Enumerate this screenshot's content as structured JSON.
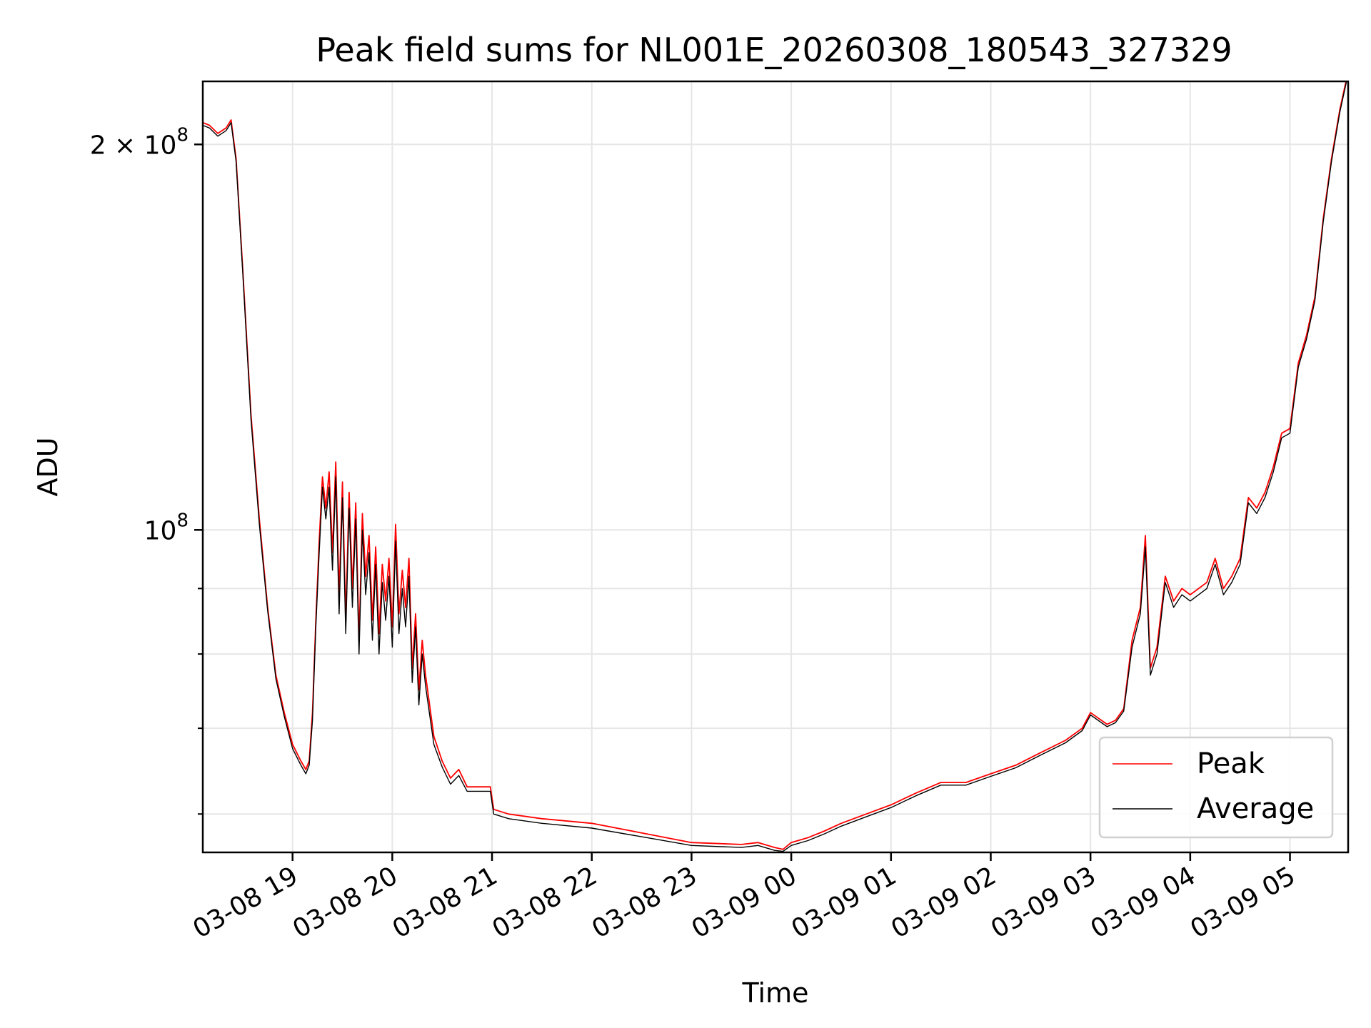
{
  "chart_data": {
    "type": "line",
    "title": "Peak field sums for NL001E_20260308_180543_327329",
    "xlabel": "Time",
    "ylabel": "ADU",
    "y_scale": "log",
    "ylim": [
      56000000,
      224000000
    ],
    "xlim": [
      "03-08 18:06",
      "03-09 05:35"
    ],
    "x_ticks": [
      "03-08 19",
      "03-08 20",
      "03-08 21",
      "03-08 22",
      "03-08 23",
      "03-09 00",
      "03-09 01",
      "03-09 02",
      "03-09 03",
      "03-09 04",
      "03-09 05"
    ],
    "y_ticks": [
      {
        "value": 200000000,
        "label": "2 × 10⁸",
        "base": "2 × 10",
        "exp": "8"
      },
      {
        "value": 100000000,
        "label": "10⁸",
        "base": "10",
        "exp": "8"
      }
    ],
    "y_minor_ticks": [
      60000000,
      70000000,
      80000000,
      90000000
    ],
    "grid": true,
    "legend": {
      "position": "lower-right"
    },
    "series": [
      {
        "name": "Peak",
        "color": "#ff0000",
        "x": [
          "03-08 18:06",
          "03-08 18:10",
          "03-08 18:15",
          "03-08 18:20",
          "03-08 18:23",
          "03-08 18:26",
          "03-08 18:30",
          "03-08 18:35",
          "03-08 18:40",
          "03-08 18:45",
          "03-08 18:50",
          "03-08 18:55",
          "03-08 19:00",
          "03-08 19:05",
          "03-08 19:08",
          "03-08 19:10",
          "03-08 19:12",
          "03-08 19:14",
          "03-08 19:16",
          "03-08 19:18",
          "03-08 19:20",
          "03-08 19:22",
          "03-08 19:24",
          "03-08 19:26",
          "03-08 19:28",
          "03-08 19:30",
          "03-08 19:32",
          "03-08 19:34",
          "03-08 19:36",
          "03-08 19:38",
          "03-08 19:40",
          "03-08 19:42",
          "03-08 19:44",
          "03-08 19:46",
          "03-08 19:48",
          "03-08 19:50",
          "03-08 19:52",
          "03-08 19:54",
          "03-08 19:56",
          "03-08 19:58",
          "03-08 20:00",
          "03-08 20:02",
          "03-08 20:04",
          "03-08 20:06",
          "03-08 20:08",
          "03-08 20:10",
          "03-08 20:12",
          "03-08 20:14",
          "03-08 20:16",
          "03-08 20:18",
          "03-08 20:20",
          "03-08 20:25",
          "03-08 20:30",
          "03-08 20:35",
          "03-08 20:40",
          "03-08 20:45",
          "03-08 20:50",
          "03-08 20:55",
          "03-08 20:59",
          "03-08 21:01",
          "03-08 21:10",
          "03-08 21:30",
          "03-08 22:00",
          "03-08 22:30",
          "03-08 23:00",
          "03-08 23:30",
          "03-08 23:40",
          "03-08 23:50",
          "03-08 23:55",
          "03-09 00:00",
          "03-09 00:10",
          "03-09 00:20",
          "03-09 00:30",
          "03-09 00:45",
          "03-09 01:00",
          "03-09 01:15",
          "03-09 01:30",
          "03-09 01:45",
          "03-09 02:00",
          "03-09 02:15",
          "03-09 02:30",
          "03-09 02:45",
          "03-09 02:55",
          "03-09 03:00",
          "03-09 03:10",
          "03-09 03:15",
          "03-09 03:20",
          "03-09 03:25",
          "03-09 03:30",
          "03-09 03:33",
          "03-09 03:36",
          "03-09 03:40",
          "03-09 03:45",
          "03-09 03:50",
          "03-09 03:55",
          "03-09 04:00",
          "03-09 04:10",
          "03-09 04:15",
          "03-09 04:20",
          "03-09 04:25",
          "03-09 04:30",
          "03-09 04:35",
          "03-09 04:40",
          "03-09 04:45",
          "03-09 04:50",
          "03-09 04:55",
          "03-09 05:00",
          "03-09 05:05",
          "03-09 05:10",
          "03-09 05:15",
          "03-09 05:20",
          "03-09 05:25",
          "03-09 05:30",
          "03-09 05:35"
        ],
        "y": [
          208000000,
          207000000,
          204000000,
          206000000,
          209000000,
          195000000,
          160000000,
          123000000,
          102000000,
          87000000,
          77000000,
          72000000,
          68000000,
          66000000,
          65000000,
          66000000,
          72000000,
          85000000,
          98000000,
          110000000,
          104000000,
          111000000,
          96000000,
          113000000,
          89000000,
          109000000,
          85000000,
          107000000,
          90000000,
          105000000,
          82000000,
          103000000,
          92000000,
          99000000,
          85000000,
          97000000,
          83000000,
          94000000,
          88000000,
          95000000,
          84000000,
          101000000,
          86000000,
          93000000,
          87000000,
          95000000,
          78000000,
          86000000,
          75000000,
          82000000,
          77000000,
          69000000,
          66000000,
          64000000,
          65000000,
          63000000,
          63000000,
          63000000,
          63000000,
          60500000,
          60000000,
          59500000,
          59000000,
          58000000,
          57000000,
          56800000,
          57000000,
          56500000,
          56300000,
          57000000,
          57500000,
          58200000,
          59000000,
          60000000,
          61000000,
          62300000,
          63500000,
          63500000,
          64500000,
          65500000,
          67000000,
          68500000,
          70000000,
          72000000,
          70500000,
          71000000,
          72500000,
          82000000,
          87000000,
          99000000,
          78000000,
          81000000,
          92000000,
          88000000,
          90000000,
          89000000,
          91000000,
          95000000,
          90000000,
          92000000,
          95000000,
          106000000,
          104000000,
          107000000,
          112000000,
          119000000,
          120000000,
          135000000,
          142000000,
          152000000,
          175000000,
          195000000,
          213000000,
          228000000
        ]
      },
      {
        "name": "Average",
        "color": "#000000",
        "x": [
          "03-08 18:06",
          "03-08 18:10",
          "03-08 18:15",
          "03-08 18:20",
          "03-08 18:23",
          "03-08 18:26",
          "03-08 18:30",
          "03-08 18:35",
          "03-08 18:40",
          "03-08 18:45",
          "03-08 18:50",
          "03-08 18:55",
          "03-08 19:00",
          "03-08 19:05",
          "03-08 19:08",
          "03-08 19:10",
          "03-08 19:12",
          "03-08 19:14",
          "03-08 19:16",
          "03-08 19:18",
          "03-08 19:20",
          "03-08 19:22",
          "03-08 19:24",
          "03-08 19:26",
          "03-08 19:28",
          "03-08 19:30",
          "03-08 19:32",
          "03-08 19:34",
          "03-08 19:36",
          "03-08 19:38",
          "03-08 19:40",
          "03-08 19:42",
          "03-08 19:44",
          "03-08 19:46",
          "03-08 19:48",
          "03-08 19:50",
          "03-08 19:52",
          "03-08 19:54",
          "03-08 19:56",
          "03-08 19:58",
          "03-08 20:00",
          "03-08 20:02",
          "03-08 20:04",
          "03-08 20:06",
          "03-08 20:08",
          "03-08 20:10",
          "03-08 20:12",
          "03-08 20:14",
          "03-08 20:16",
          "03-08 20:18",
          "03-08 20:20",
          "03-08 20:25",
          "03-08 20:30",
          "03-08 20:35",
          "03-08 20:40",
          "03-08 20:45",
          "03-08 20:50",
          "03-08 20:55",
          "03-08 20:59",
          "03-08 21:01",
          "03-08 21:10",
          "03-08 21:30",
          "03-08 22:00",
          "03-08 22:30",
          "03-08 23:00",
          "03-08 23:30",
          "03-08 23:40",
          "03-08 23:50",
          "03-08 23:55",
          "03-09 00:00",
          "03-09 00:10",
          "03-09 00:20",
          "03-09 00:30",
          "03-09 00:45",
          "03-09 01:00",
          "03-09 01:15",
          "03-09 01:30",
          "03-09 01:45",
          "03-09 02:00",
          "03-09 02:15",
          "03-09 02:30",
          "03-09 02:45",
          "03-09 02:55",
          "03-09 03:00",
          "03-09 03:10",
          "03-09 03:15",
          "03-09 03:20",
          "03-09 03:25",
          "03-09 03:30",
          "03-09 03:33",
          "03-09 03:36",
          "03-09 03:40",
          "03-09 03:45",
          "03-09 03:50",
          "03-09 03:55",
          "03-09 04:00",
          "03-09 04:10",
          "03-09 04:15",
          "03-09 04:20",
          "03-09 04:25",
          "03-09 04:30",
          "03-09 04:35",
          "03-09 04:40",
          "03-09 04:45",
          "03-09 04:50",
          "03-09 04:55",
          "03-09 05:00",
          "03-09 05:05",
          "03-09 05:10",
          "03-09 05:15",
          "03-09 05:20",
          "03-09 05:25",
          "03-09 05:30",
          "03-09 05:35"
        ],
        "y": [
          207000000,
          206000000,
          203000000,
          205000000,
          208000000,
          194000000,
          159000000,
          122000000,
          101000000,
          86500000,
          76500000,
          71500000,
          67500000,
          65500000,
          64500000,
          65500000,
          71000000,
          84000000,
          96000000,
          108000000,
          102000000,
          108000000,
          93000000,
          110000000,
          86000000,
          106000000,
          83000000,
          104000000,
          87000000,
          102000000,
          80000000,
          100000000,
          89000000,
          96000000,
          82000000,
          94000000,
          80000000,
          91000000,
          85000000,
          92000000,
          81000000,
          98000000,
          83000000,
          90000000,
          84000000,
          92000000,
          76000000,
          84000000,
          73000000,
          80000000,
          75500000,
          68000000,
          65300000,
          63300000,
          64300000,
          62500000,
          62500000,
          62500000,
          62500000,
          60000000,
          59500000,
          59000000,
          58500000,
          57600000,
          56700000,
          56500000,
          56700000,
          56200000,
          56100000,
          56700000,
          57200000,
          57900000,
          58700000,
          59700000,
          60700000,
          62000000,
          63200000,
          63200000,
          64200000,
          65200000,
          66700000,
          68200000,
          69700000,
          71700000,
          70200000,
          70700000,
          72200000,
          81000000,
          86000000,
          97000000,
          77000000,
          80000000,
          91000000,
          87000000,
          89000000,
          88000000,
          90000000,
          94000000,
          89000000,
          91000000,
          94000000,
          105000000,
          103000000,
          106000000,
          111000000,
          118000000,
          119000000,
          134000000,
          141000000,
          151000000,
          174000000,
          194000000,
          212000000,
          227000000
        ]
      }
    ]
  }
}
